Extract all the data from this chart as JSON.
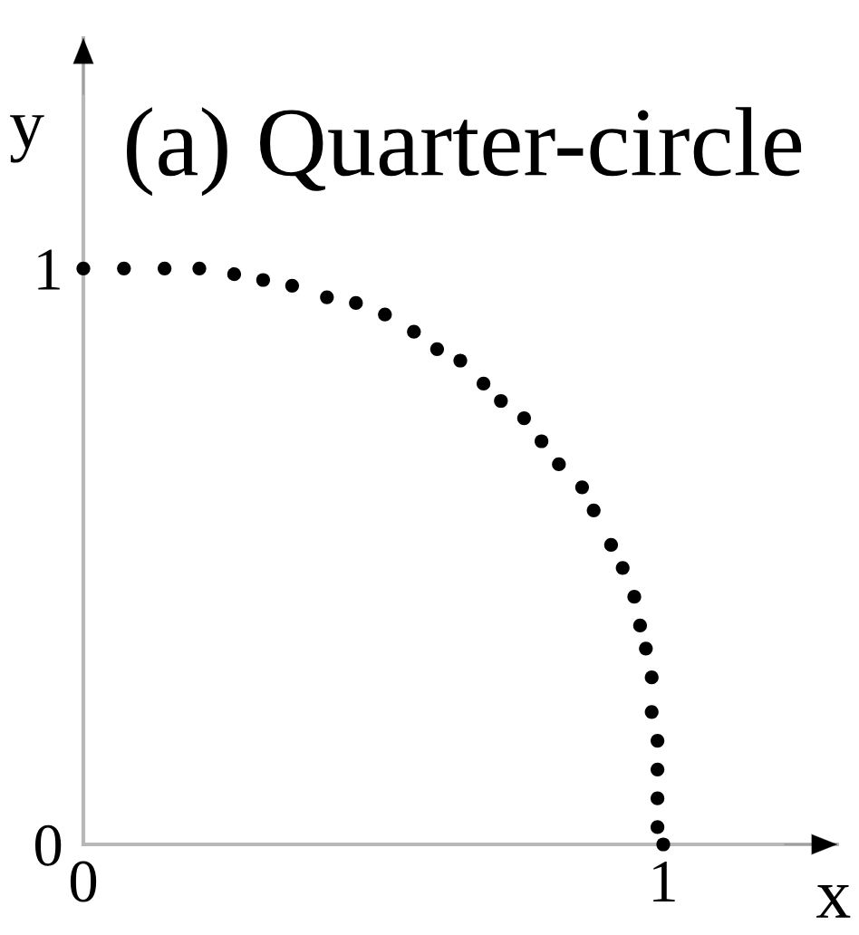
{
  "chart_data": {
    "type": "scatter",
    "title": "(a) Quarter-circle",
    "xlabel": "x",
    "ylabel": "y",
    "x": [
      0,
      0.07,
      0.14,
      0.2,
      0.26,
      0.31,
      0.36,
      0.42,
      0.47,
      0.52,
      0.57,
      0.61,
      0.65,
      0.69,
      0.72,
      0.76,
      0.79,
      0.82,
      0.86,
      0.88,
      0.91,
      0.93,
      0.95,
      0.96,
      0.97,
      0.98,
      0.98,
      0.99,
      0.99,
      0.99,
      0.99,
      1.0
    ],
    "values": [
      1,
      1,
      1,
      1,
      0.99,
      0.98,
      0.97,
      0.95,
      0.94,
      0.92,
      0.89,
      0.86,
      0.84,
      0.8,
      0.77,
      0.74,
      0.7,
      0.66,
      0.62,
      0.58,
      0.52,
      0.48,
      0.43,
      0.38,
      0.34,
      0.29,
      0.23,
      0.18,
      0.13,
      0.08,
      0.03,
      0
    ],
    "color": "#000000",
    "marker": "circle",
    "xlim": [
      0,
      1.3
    ],
    "ylim": [
      0,
      1.4
    ],
    "xticks": [
      0,
      1
    ],
    "yticks": [
      0,
      1
    ]
  }
}
